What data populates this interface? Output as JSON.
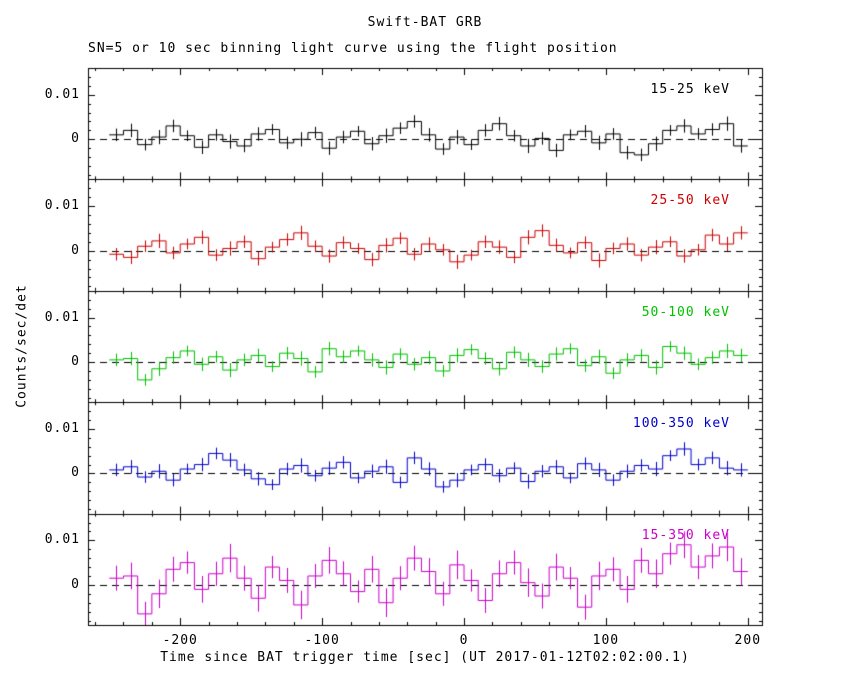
{
  "chart_data": {
    "type": "line",
    "title": "Swift-BAT GRB",
    "subtitle": "SN=5 or 10 sec binning light curve using the flight position",
    "xlabel": "Time since BAT trigger time [sec] (UT 2017-01-12T02:02:00.1)",
    "ylabel": "Counts/sec/det",
    "background": "#ffffff",
    "axis_color": "#000000",
    "zero_line_style": "dashed",
    "grid": false,
    "xlim": [
      -265,
      210
    ],
    "ylim": [
      -0.009,
      0.016
    ],
    "x_major_ticks": [
      -200,
      -100,
      0,
      100,
      200
    ],
    "x_tick_labels": [
      "-200",
      "-100",
      "0",
      "100",
      "200"
    ],
    "x_minor_step": 20,
    "y_major_ticks": [
      0,
      0.01
    ],
    "y_tick_labels": [
      "0",
      "0.01"
    ],
    "y_minor_step": 0.002,
    "bin_width": 10,
    "x": [
      -245,
      -235,
      -225,
      -215,
      -205,
      -195,
      -185,
      -175,
      -165,
      -155,
      -145,
      -135,
      -125,
      -115,
      -105,
      -95,
      -85,
      -75,
      -65,
      -55,
      -45,
      -35,
      -25,
      -15,
      -5,
      5,
      15,
      25,
      35,
      45,
      55,
      65,
      75,
      85,
      95,
      105,
      115,
      125,
      135,
      145,
      155,
      165,
      175,
      185,
      195
    ],
    "series": [
      {
        "name": "15-25 keV",
        "color": "#000000",
        "y": [
          0.001,
          0.002,
          -0.0012,
          0.0005,
          0.003,
          0.0008,
          -0.0018,
          0.001,
          -0.0005,
          -0.0015,
          0.0012,
          0.0022,
          -0.0008,
          0.0,
          0.0015,
          -0.002,
          0.0005,
          0.0018,
          -0.001,
          0.0008,
          0.0025,
          0.004,
          0.001,
          -0.0022,
          0.0005,
          -0.0012,
          0.002,
          0.0035,
          0.0008,
          -0.0015,
          0.0002,
          -0.0025,
          0.001,
          0.0018,
          -0.0008,
          0.0012,
          -0.003,
          -0.0035,
          -0.001,
          0.002,
          0.003,
          0.0012,
          0.0022,
          0.0035,
          -0.0015
        ],
        "err": [
          0.0014,
          0.0015,
          0.0013,
          0.0016,
          0.0014,
          0.0012,
          0.0015,
          0.0013,
          0.0016,
          0.0014,
          0.0015,
          0.0012,
          0.0014,
          0.0016,
          0.0013,
          0.0015,
          0.0014,
          0.0012,
          0.0015,
          0.0016,
          0.0013,
          0.0014,
          0.0015,
          0.0013,
          0.0016,
          0.0012,
          0.0014,
          0.0015,
          0.0013,
          0.0016,
          0.0014,
          0.0015,
          0.0012,
          0.0014,
          0.0016,
          0.0013,
          0.0015,
          0.0014,
          0.0016,
          0.0012,
          0.0015,
          0.0013,
          0.0014,
          0.0016,
          0.0015
        ]
      },
      {
        "name": "25-50 keV",
        "color": "#cc0000",
        "y": [
          -0.0008,
          -0.0015,
          0.001,
          0.0022,
          -0.0005,
          0.0015,
          0.003,
          -0.001,
          0.0005,
          0.002,
          -0.0018,
          0.0008,
          0.0025,
          0.004,
          0.001,
          -0.0012,
          0.0018,
          0.0005,
          -0.002,
          0.0012,
          0.0028,
          -0.0008,
          0.0015,
          0.0002,
          -0.0025,
          -0.001,
          0.002,
          0.0008,
          -0.0015,
          0.003,
          0.0045,
          0.0012,
          -0.0005,
          0.0018,
          -0.0022,
          0.0005,
          0.0015,
          -0.001,
          0.0008,
          0.002,
          -0.0012,
          0.0002,
          0.0035,
          0.0015,
          0.004
        ],
        "err": [
          0.0014,
          0.0015,
          0.0013,
          0.0016,
          0.0014,
          0.0012,
          0.0015,
          0.0013,
          0.0016,
          0.0014,
          0.0015,
          0.0012,
          0.0014,
          0.0016,
          0.0013,
          0.0015,
          0.0014,
          0.0012,
          0.0015,
          0.0016,
          0.0013,
          0.0014,
          0.0015,
          0.0013,
          0.0016,
          0.0012,
          0.0014,
          0.0015,
          0.0013,
          0.0016,
          0.0014,
          0.0015,
          0.0012,
          0.0014,
          0.0016,
          0.0013,
          0.0015,
          0.0014,
          0.0016,
          0.0012,
          0.0015,
          0.0013,
          0.0014,
          0.0016,
          0.0015
        ]
      },
      {
        "name": "50-100 keV",
        "color": "#00c000",
        "y": [
          0.0005,
          0.0008,
          -0.004,
          -0.0015,
          0.001,
          0.0025,
          -0.0005,
          0.0012,
          -0.0018,
          0.0005,
          0.0015,
          -0.001,
          0.002,
          0.0008,
          -0.0022,
          0.003,
          0.0012,
          0.0025,
          0.0005,
          -0.0012,
          0.0018,
          -0.0005,
          0.001,
          -0.002,
          0.0015,
          0.0028,
          0.0008,
          -0.0015,
          0.0022,
          0.0005,
          -0.001,
          0.0018,
          0.003,
          -0.0008,
          0.0012,
          -0.0025,
          0.0005,
          0.0015,
          -0.0012,
          0.0035,
          0.002,
          -0.0005,
          0.001,
          0.0025,
          0.0015
        ],
        "err": [
          0.0014,
          0.0015,
          0.0013,
          0.0016,
          0.0014,
          0.0012,
          0.0015,
          0.0013,
          0.0016,
          0.0014,
          0.0015,
          0.0012,
          0.0014,
          0.0016,
          0.0013,
          0.0015,
          0.0014,
          0.0012,
          0.0015,
          0.0016,
          0.0013,
          0.0014,
          0.0015,
          0.0013,
          0.0016,
          0.0012,
          0.0014,
          0.0015,
          0.0013,
          0.0016,
          0.0014,
          0.0015,
          0.0012,
          0.0014,
          0.0016,
          0.0013,
          0.0015,
          0.0014,
          0.0016,
          0.0012,
          0.0015,
          0.0013,
          0.0014,
          0.0016,
          0.0015
        ]
      },
      {
        "name": "100-350 keV",
        "color": "#0000cc",
        "y": [
          0.0008,
          0.0015,
          -0.0008,
          0.0005,
          -0.0015,
          0.001,
          0.002,
          0.0045,
          0.003,
          0.0008,
          -0.0012,
          -0.0025,
          0.001,
          0.0018,
          -0.0005,
          0.0012,
          0.0025,
          -0.001,
          0.0005,
          0.0015,
          -0.002,
          0.0035,
          0.001,
          -0.003,
          -0.0015,
          0.0008,
          0.002,
          -0.0005,
          0.0012,
          -0.0018,
          0.0005,
          0.0015,
          -0.001,
          0.0022,
          0.0008,
          -0.0015,
          0.0005,
          0.0018,
          0.001,
          0.004,
          0.0055,
          0.002,
          0.0035,
          0.0012,
          0.0008
        ],
        "err": [
          0.0014,
          0.0015,
          0.0013,
          0.0016,
          0.0014,
          0.0012,
          0.0015,
          0.0013,
          0.0016,
          0.0014,
          0.0015,
          0.0012,
          0.0014,
          0.0016,
          0.0013,
          0.0015,
          0.0014,
          0.0012,
          0.0015,
          0.0016,
          0.0013,
          0.0014,
          0.0015,
          0.0013,
          0.0016,
          0.0012,
          0.0014,
          0.0015,
          0.0013,
          0.0016,
          0.0014,
          0.0015,
          0.0012,
          0.0014,
          0.0016,
          0.0013,
          0.0015,
          0.0014,
          0.0016,
          0.0012,
          0.0015,
          0.0013,
          0.0014,
          0.0016,
          0.0015
        ]
      },
      {
        "name": "15-350 keV",
        "color": "#cc00cc",
        "y": [
          0.0015,
          0.002,
          -0.0065,
          -0.002,
          0.0035,
          0.005,
          -0.001,
          0.0025,
          0.006,
          0.0015,
          -0.003,
          0.004,
          0.001,
          -0.0045,
          0.002,
          0.0055,
          0.0025,
          -0.0015,
          0.0035,
          -0.004,
          0.0015,
          0.006,
          0.003,
          -0.002,
          0.0045,
          0.001,
          -0.0035,
          0.0025,
          0.005,
          0.0005,
          -0.0025,
          0.004,
          0.0015,
          -0.005,
          0.002,
          0.0035,
          -0.001,
          0.0055,
          0.0025,
          0.007,
          0.009,
          0.004,
          0.0065,
          0.0085,
          0.003
        ],
        "err": [
          0.0028,
          0.003,
          0.0027,
          0.0032,
          0.0028,
          0.0025,
          0.003,
          0.0027,
          0.0032,
          0.0028,
          0.003,
          0.0025,
          0.0028,
          0.0032,
          0.0027,
          0.003,
          0.0028,
          0.0025,
          0.003,
          0.0032,
          0.0027,
          0.0028,
          0.003,
          0.0027,
          0.0032,
          0.0025,
          0.0028,
          0.003,
          0.0027,
          0.0032,
          0.0028,
          0.003,
          0.0025,
          0.0028,
          0.0032,
          0.0027,
          0.003,
          0.0028,
          0.0032,
          0.0025,
          0.003,
          0.0027,
          0.0028,
          0.0032,
          0.003
        ]
      }
    ]
  }
}
